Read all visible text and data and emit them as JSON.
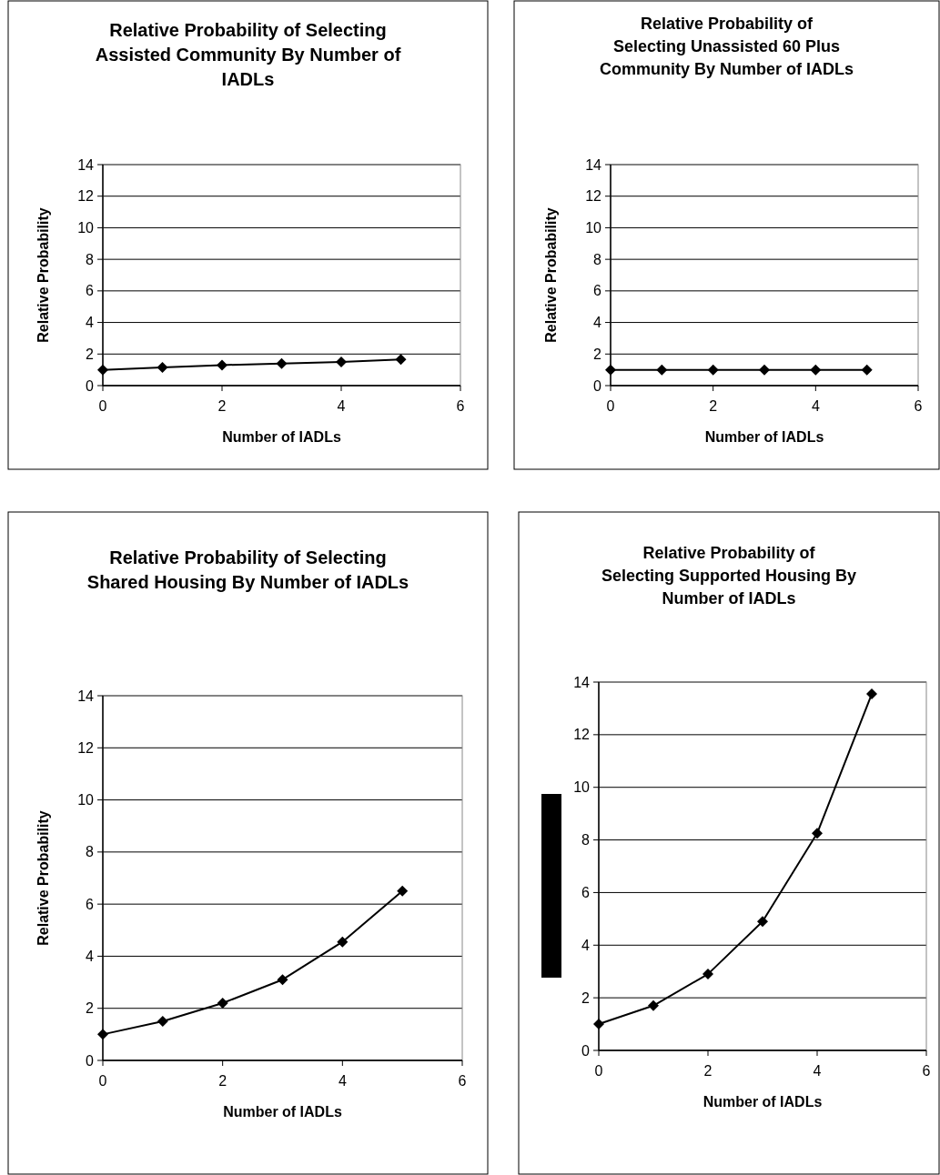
{
  "chart_data": [
    {
      "type": "line",
      "title": "Relative Probability of Selecting Assisted Community By Number of IADLs",
      "xlabel": "Number of IADLs",
      "ylabel": "Relative Probability",
      "x": [
        0,
        1,
        2,
        3,
        4,
        5
      ],
      "series": [
        {
          "color": "#000000",
          "values": [
            1,
            1.15,
            1.3,
            1.4,
            1.5,
            1.65
          ]
        }
      ],
      "xlim": [
        0,
        6
      ],
      "xticks": [
        0,
        2,
        4,
        6
      ],
      "ylim": [
        0,
        14
      ],
      "yticks": [
        0,
        2,
        4,
        6,
        8,
        10,
        12,
        14
      ],
      "grid": "y",
      "marker": "diamond"
    },
    {
      "type": "line",
      "title": "Relative Probability of Selecting Unassisted 60 Plus Community By Number of IADLs",
      "xlabel": "Number of IADLs",
      "ylabel": "Relative Probability",
      "x": [
        0,
        1,
        2,
        3,
        4,
        5
      ],
      "series": [
        {
          "color": "#000000",
          "values": [
            1,
            1,
            1,
            1,
            1,
            1
          ]
        }
      ],
      "xlim": [
        0,
        6
      ],
      "xticks": [
        0,
        2,
        4,
        6
      ],
      "ylim": [
        0,
        14
      ],
      "yticks": [
        0,
        2,
        4,
        6,
        8,
        10,
        12,
        14
      ],
      "grid": "y",
      "marker": "diamond"
    },
    {
      "type": "line",
      "title": "Relative Probability of Selecting Shared Housing By Number of IADLs",
      "xlabel": "Number of IADLs",
      "ylabel": "Relative Probability",
      "x": [
        0,
        1,
        2,
        3,
        4,
        5
      ],
      "series": [
        {
          "color": "#000000",
          "values": [
            1,
            1.5,
            2.2,
            3.1,
            4.55,
            6.5
          ]
        }
      ],
      "xlim": [
        0,
        6
      ],
      "xticks": [
        0,
        2,
        4,
        6
      ],
      "ylim": [
        0,
        14
      ],
      "yticks": [
        0,
        2,
        4,
        6,
        8,
        10,
        12,
        14
      ],
      "grid": "y",
      "marker": "diamond"
    },
    {
      "type": "line",
      "title": "Relative Probability of Selecting Supported Housing By Number of IADLs",
      "xlabel": "Number of IADLs",
      "x": [
        0,
        1,
        2,
        3,
        4,
        5
      ],
      "series": [
        {
          "color": "#000000",
          "values": [
            1,
            1.7,
            2.9,
            4.9,
            8.25,
            13.55
          ]
        }
      ],
      "xlim": [
        0,
        6
      ],
      "xticks": [
        0,
        2,
        4,
        6
      ],
      "ylim": [
        0,
        14
      ],
      "yticks": [
        0,
        2,
        4,
        6,
        8,
        10,
        12,
        14
      ],
      "grid": "y",
      "marker": "diamond"
    }
  ]
}
